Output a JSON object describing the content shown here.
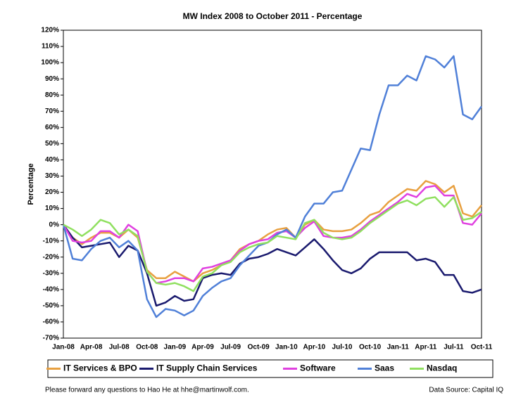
{
  "chart_data": {
    "type": "line",
    "title": "MW Index 2008 to October 2011 - Percentage",
    "y_label": "Percentage",
    "footer_left": "Please forward any questions to Hao He at hhe@martinwolf.com.",
    "footer_right": "Data Source: Capital IQ",
    "legend": "bottom",
    "categories": [
      "Jan-08",
      null,
      null,
      "Apr-08",
      null,
      null,
      "Jul-08",
      null,
      null,
      "Oct-08",
      null,
      null,
      "Jan-09",
      null,
      null,
      "Apr-09",
      null,
      null,
      "Jul-09",
      null,
      null,
      "Oct-09",
      null,
      null,
      "Jan-10",
      null,
      null,
      "Apr-10",
      null,
      null,
      "Jul-10",
      null,
      null,
      "Oct-10",
      null,
      null,
      "Jan-11",
      null,
      null,
      "Apr-11",
      null,
      null,
      "Jul-11",
      null,
      null,
      "Oct-11"
    ],
    "ylim": [
      -70,
      120
    ],
    "yticks": [
      {
        "value": -70,
        "label": "-70%"
      },
      {
        "value": -60,
        "label": "-60%"
      },
      {
        "value": -50,
        "label": "-50%"
      },
      {
        "value": -40,
        "label": "-40%"
      },
      {
        "value": -30,
        "label": "-30%"
      },
      {
        "value": -20,
        "label": "-20%"
      },
      {
        "value": -10,
        "label": "-10%"
      },
      {
        "value": 0,
        "label": "0%"
      },
      {
        "value": 10,
        "label": "10%"
      },
      {
        "value": 20,
        "label": "20%"
      },
      {
        "value": 30,
        "label": "30%"
      },
      {
        "value": 40,
        "label": "40%"
      },
      {
        "value": 50,
        "label": "50%"
      },
      {
        "value": 60,
        "label": "60%"
      },
      {
        "value": 70,
        "label": "70%"
      },
      {
        "value": 80,
        "label": "80%"
      },
      {
        "value": 90,
        "label": "90%"
      },
      {
        "value": 100,
        "label": "100%"
      },
      {
        "value": 110,
        "label": "110%"
      },
      {
        "value": 120,
        "label": "120%"
      }
    ],
    "series": [
      {
        "name": "IT Services & BPO",
        "color": "#e8a040",
        "values": [
          0,
          -8,
          -12,
          -8,
          -5,
          -5,
          -8,
          -3,
          -8,
          -28,
          -33,
          -33,
          -29,
          -32,
          -35,
          -30,
          -28,
          -25,
          -22,
          -15,
          -12,
          -10,
          -6,
          -3,
          -2,
          -8,
          0,
          3,
          -3,
          -4,
          -4,
          -3,
          1,
          6,
          8,
          14,
          18,
          22,
          21,
          27,
          25,
          20,
          24,
          7,
          5,
          12
        ]
      },
      {
        "name": "IT Supply Chain Services",
        "color": "#1a1a6e",
        "values": [
          0,
          -8,
          -14,
          -13,
          -12,
          -11,
          -20,
          -13,
          -16,
          -30,
          -50,
          -48,
          -44,
          -47,
          -46,
          -33,
          -31,
          -30,
          -31,
          -24,
          -21,
          -20,
          -18,
          -15,
          -17,
          -19,
          -14,
          -9,
          -15,
          -22,
          -28,
          -30,
          -27,
          -21,
          -17,
          -17,
          -17,
          -17,
          -22,
          -21,
          -23,
          -31,
          -31,
          -41,
          -42,
          -40
        ]
      },
      {
        "name": "Software",
        "color": "#e040e0",
        "values": [
          0,
          -10,
          -11,
          -10,
          -4,
          -4,
          -8,
          0,
          -4,
          -29,
          -36,
          -35,
          -33,
          -33,
          -35,
          -27,
          -26,
          -24,
          -22,
          -16,
          -12,
          -10,
          -9,
          -5,
          -4,
          -8,
          -2,
          2,
          -7,
          -8,
          -8,
          -7,
          -3,
          2,
          6,
          10,
          14,
          19,
          17,
          23,
          24,
          18,
          18,
          1,
          0,
          7
        ]
      },
      {
        "name": "Saas",
        "color": "#5080d8",
        "values": [
          0,
          -21,
          -22,
          -15,
          -10,
          -8,
          -14,
          -10,
          -16,
          -46,
          -57,
          -52,
          -53,
          -56,
          -53,
          -44,
          -39,
          -35,
          -33,
          -25,
          -19,
          -13,
          -11,
          -6,
          -3,
          -8,
          5,
          13,
          13,
          20,
          21,
          34,
          47,
          46,
          68,
          86,
          86,
          92,
          89,
          104,
          102,
          97,
          104,
          68,
          65,
          73
        ]
      },
      {
        "name": "Nasdaq",
        "color": "#90e060",
        "values": [
          0,
          -3,
          -7,
          -3,
          3,
          1,
          -6,
          -3,
          -7,
          -29,
          -36,
          -37,
          -36,
          -38,
          -41,
          -32,
          -30,
          -25,
          -23,
          -17,
          -14,
          -12,
          -11,
          -7,
          -8,
          -9,
          1,
          3,
          -5,
          -8,
          -9,
          -8,
          -4,
          1,
          5,
          9,
          13,
          15,
          12,
          16,
          17,
          11,
          17,
          3,
          4,
          8
        ]
      }
    ]
  }
}
